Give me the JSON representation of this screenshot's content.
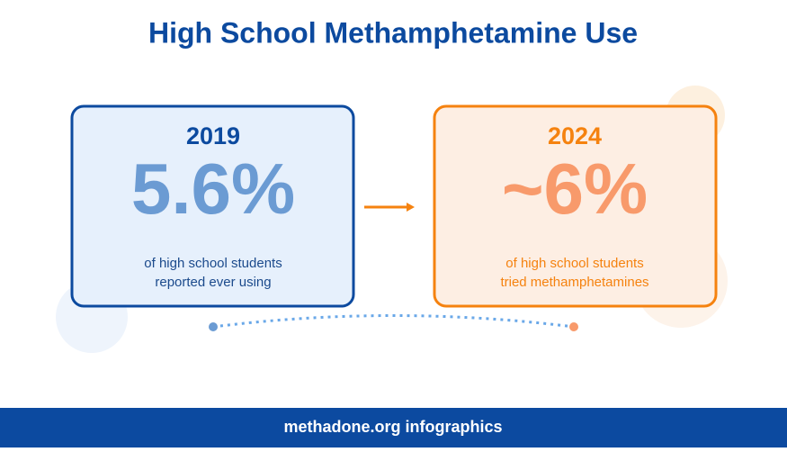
{
  "header": {
    "title": "High School Methamphetamine Use"
  },
  "cards": [
    {
      "year": "2019",
      "value": "5.6%",
      "description": [
        "of high school students",
        "reported ever using"
      ]
    },
    {
      "year": "2024",
      "value": "~6%",
      "description": [
        "of high school students",
        "tried methamphetamines"
      ]
    }
  ],
  "footer": {
    "text": "methadone.org infographics"
  }
}
